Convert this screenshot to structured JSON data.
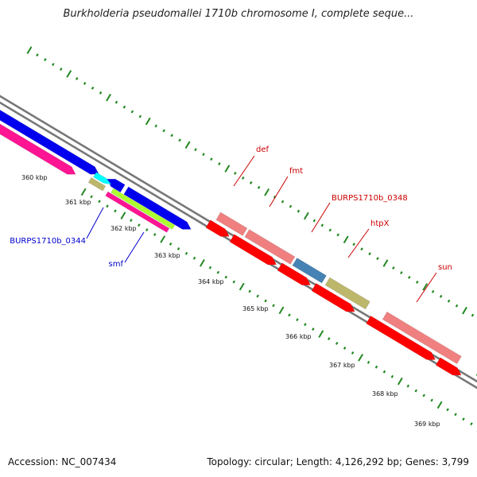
{
  "header": {
    "title": "Burkholderia pseudomallei 1710b chromosome I, complete seque..."
  },
  "footer": {
    "accession": "Accession: NC_007434",
    "summary": "Topology: circular; Length: 4,126,292 bp; Genes: 3,799"
  },
  "colors": {
    "backbone": "#777777",
    "tick": "#228822",
    "blue": "#0000ee",
    "pink": "#ff1493",
    "red": "#ff0000",
    "salmon": "#f08080",
    "steel": "#4682b4",
    "khaki": "#bdb76b",
    "cyan": "#00ffff",
    "lime": "#adff2f",
    "green": "#22cc22",
    "label_red": "#cc0000",
    "label_blue": "#0000cc"
  },
  "scale_labels": [
    "360 kbp",
    "361 kbp",
    "362 kbp",
    "363 kbp",
    "364 kbp",
    "365 kbp",
    "366 kbp",
    "367 kbp",
    "368 kbp",
    "369 kbp"
  ],
  "gene_labels": [
    {
      "text": "def",
      "color": "label_red"
    },
    {
      "text": "fmt",
      "color": "label_red"
    },
    {
      "text": "BURPS1710b_0348",
      "color": "label_red"
    },
    {
      "text": "htpX",
      "color": "label_red"
    },
    {
      "text": "sun",
      "color": "label_red"
    },
    {
      "text": "BURPS1710b_0344",
      "color": "label_blue"
    },
    {
      "text": "smf",
      "color": "label_blue"
    }
  ]
}
